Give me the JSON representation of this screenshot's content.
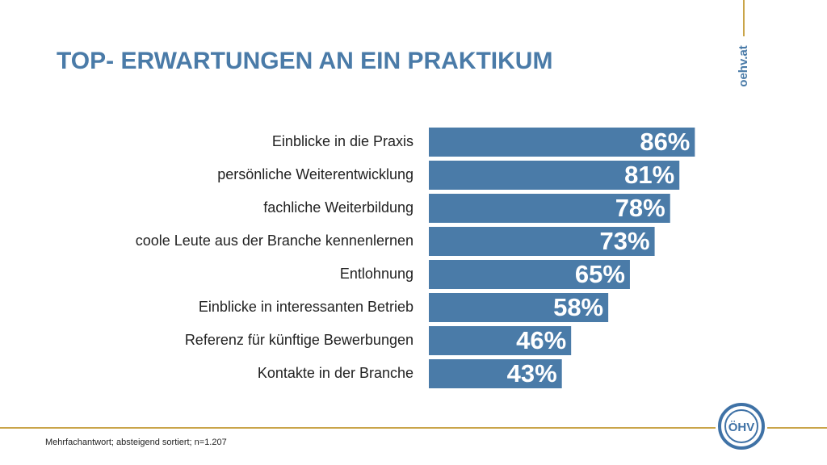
{
  "chart_data": {
    "type": "bar",
    "orientation": "horizontal",
    "title": "TOP- ERWARTUNGEN AN EIN PRAKTIKUM",
    "categories": [
      "Einblicke in die Praxis",
      "persönliche Weiterentwicklung",
      "fachliche Weiterbildung",
      "coole Leute aus der Branche kennenlernen",
      "Entlohnung",
      "Einblicke in interessanten Betrieb",
      "Referenz für künftige Bewerbungen",
      "Kontakte in der Branche"
    ],
    "values": [
      86,
      81,
      78,
      73,
      65,
      58,
      46,
      43
    ],
    "value_labels": [
      "86%",
      "81%",
      "78%",
      "73%",
      "65%",
      "58%",
      "46%",
      "43%"
    ],
    "color": "#4a7ba8"
  },
  "footnote": "Mehrfachantwort; absteigend sortiert; n=1.207",
  "brand": "oehv.at",
  "logo": "ÖHV"
}
